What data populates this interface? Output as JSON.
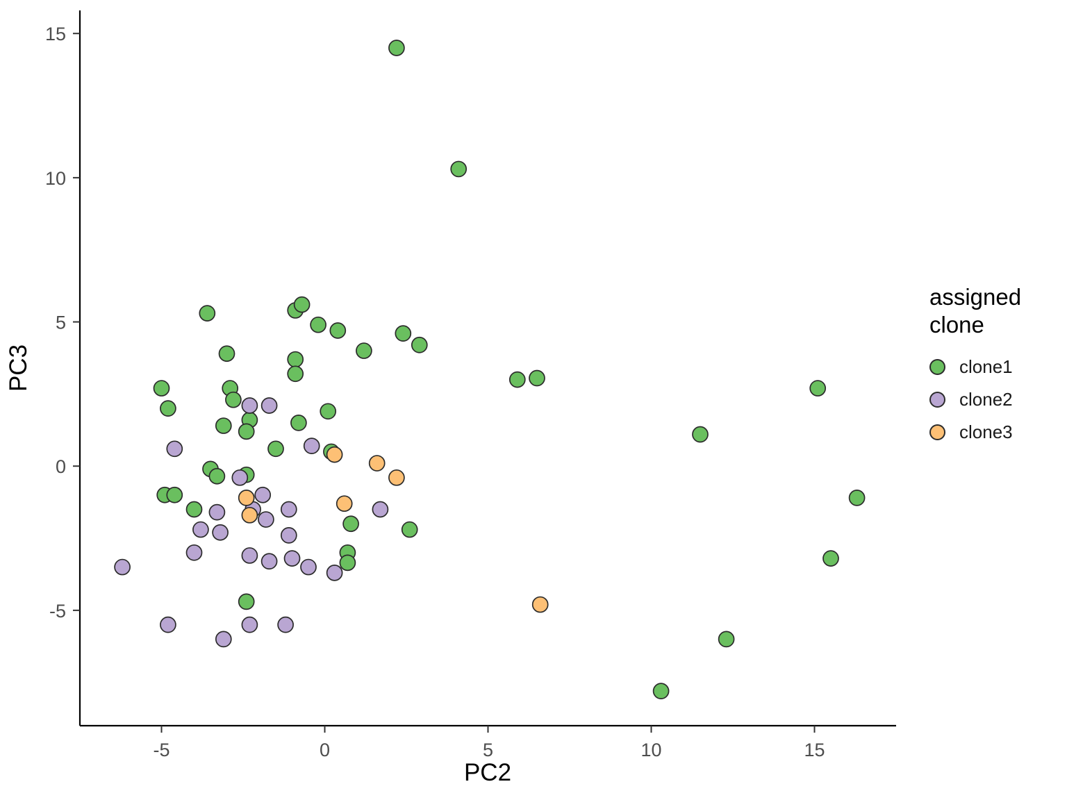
{
  "chart_data": {
    "type": "scatter",
    "title": "",
    "xlabel": "PC2",
    "ylabel": "PC3",
    "xlim": [
      -7.5,
      17.5
    ],
    "ylim": [
      -9,
      15.8
    ],
    "x_ticks": [
      -5,
      0,
      5,
      10,
      15
    ],
    "y_ticks": [
      -5,
      0,
      5,
      10,
      15
    ],
    "grid": false,
    "legend": {
      "title": "assigned clone",
      "position": "right"
    },
    "point_style": {
      "stroke": "#2b2b2b",
      "radius": 11,
      "stroke_width": 1.7
    },
    "series": [
      {
        "name": "clone1",
        "color": "#6abf5f",
        "points": [
          [
            2.2,
            14.5
          ],
          [
            4.1,
            10.3
          ],
          [
            -3.6,
            5.3
          ],
          [
            -0.9,
            5.4
          ],
          [
            -0.7,
            5.6
          ],
          [
            -0.2,
            4.9
          ],
          [
            0.4,
            4.7
          ],
          [
            2.4,
            4.6
          ],
          [
            2.9,
            4.2
          ],
          [
            1.2,
            4.0
          ],
          [
            -3.0,
            3.9
          ],
          [
            -0.9,
            3.7
          ],
          [
            -0.9,
            3.2
          ],
          [
            5.9,
            3.0
          ],
          [
            6.5,
            3.05
          ],
          [
            15.1,
            2.7
          ],
          [
            -5.0,
            2.7
          ],
          [
            -2.9,
            2.7
          ],
          [
            -2.8,
            2.3
          ],
          [
            -4.8,
            2.0
          ],
          [
            0.1,
            1.9
          ],
          [
            -2.3,
            1.6
          ],
          [
            -0.8,
            1.5
          ],
          [
            -3.1,
            1.4
          ],
          [
            -2.4,
            1.2
          ],
          [
            11.5,
            1.1
          ],
          [
            -1.5,
            0.6
          ],
          [
            0.2,
            0.5
          ],
          [
            -3.5,
            -0.1
          ],
          [
            -3.3,
            -0.35
          ],
          [
            -2.4,
            -0.3
          ],
          [
            -4.9,
            -1.0
          ],
          [
            -4.6,
            -1.0
          ],
          [
            16.3,
            -1.1
          ],
          [
            -4.0,
            -1.5
          ],
          [
            0.8,
            -2.0
          ],
          [
            2.6,
            -2.2
          ],
          [
            0.7,
            -3.0
          ],
          [
            0.7,
            -3.35
          ],
          [
            15.5,
            -3.2
          ],
          [
            -2.4,
            -4.7
          ],
          [
            12.3,
            -6.0
          ],
          [
            10.3,
            -7.8
          ]
        ]
      },
      {
        "name": "clone2",
        "color": "#b9a6d2",
        "points": [
          [
            -2.3,
            2.1
          ],
          [
            -1.7,
            2.1
          ],
          [
            -4.6,
            0.6
          ],
          [
            -0.4,
            0.7
          ],
          [
            -2.6,
            -0.4
          ],
          [
            -1.9,
            -1.0
          ],
          [
            -3.3,
            -1.6
          ],
          [
            -2.2,
            -1.5
          ],
          [
            -1.1,
            -1.5
          ],
          [
            -1.8,
            -1.85
          ],
          [
            1.7,
            -1.5
          ],
          [
            -3.8,
            -2.2
          ],
          [
            -3.2,
            -2.3
          ],
          [
            -1.1,
            -2.4
          ],
          [
            -4.0,
            -3.0
          ],
          [
            -2.3,
            -3.1
          ],
          [
            -1.7,
            -3.3
          ],
          [
            -1.0,
            -3.2
          ],
          [
            -0.5,
            -3.5
          ],
          [
            0.3,
            -3.7
          ],
          [
            -6.2,
            -3.5
          ],
          [
            -4.8,
            -5.5
          ],
          [
            -2.3,
            -5.5
          ],
          [
            -1.2,
            -5.5
          ],
          [
            -3.1,
            -6.0
          ]
        ]
      },
      {
        "name": "clone3",
        "color": "#fdc075",
        "points": [
          [
            0.3,
            0.4
          ],
          [
            1.6,
            0.1
          ],
          [
            2.2,
            -0.4
          ],
          [
            -2.4,
            -1.1
          ],
          [
            -2.3,
            -1.7
          ],
          [
            0.6,
            -1.3
          ],
          [
            6.6,
            -4.8
          ]
        ]
      }
    ]
  }
}
